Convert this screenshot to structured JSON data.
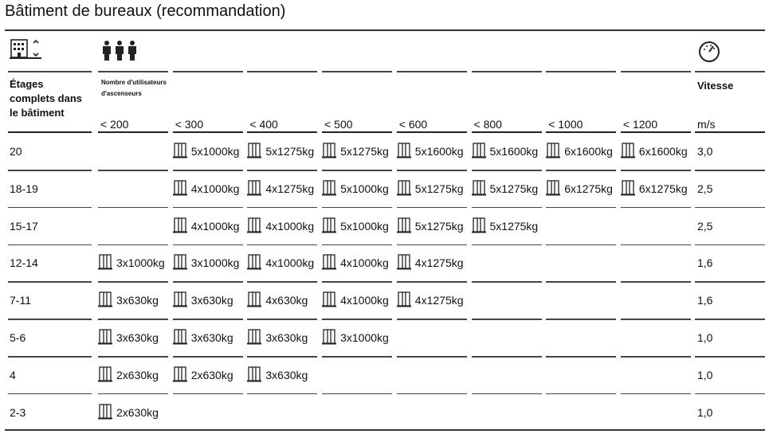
{
  "header": {
    "title": "Bâtiment de bureaux (recommandation)"
  },
  "table": {
    "floors_header": "Étages complets dans le bâtiment",
    "users_header": "Nombre d'utilisateurs d'ascenseurs",
    "columns": [
      "< 200",
      "< 300",
      "< 400",
      "< 500",
      "< 600",
      "< 800",
      "< 1000",
      "< 1200"
    ],
    "speed_header": "Vitesse",
    "speed_unit": "m/s",
    "rows": [
      {
        "floors": "20",
        "cells": [
          null,
          "5x1000kg",
          "5x1275kg",
          "5x1275kg",
          "5x1600kg",
          "5x1600kg",
          "6x1600kg",
          "6x1600kg"
        ],
        "speed": "3,0"
      },
      {
        "floors": "18-19",
        "cells": [
          null,
          "4x1000kg",
          "4x1275kg",
          "5x1000kg",
          "5x1275kg",
          "5x1275kg",
          "6x1275kg",
          "6x1275kg"
        ],
        "speed": "2,5"
      },
      {
        "floors": "15-17",
        "cells": [
          null,
          "4x1000kg",
          "4x1000kg",
          "5x1000kg",
          "5x1275kg",
          "5x1275kg",
          null,
          null
        ],
        "speed": "2,5"
      },
      {
        "floors": "12-14",
        "cells": [
          "3x1000kg",
          "3x1000kg",
          "4x1000kg",
          "4x1000kg",
          "4x1275kg",
          null,
          null,
          null
        ],
        "speed": "1,6"
      },
      {
        "floors": "7-11",
        "cells": [
          "3x630kg",
          "3x630kg",
          "4x630kg",
          "4x1000kg",
          "4x1275kg",
          null,
          null,
          null
        ],
        "speed": "1,6"
      },
      {
        "floors": "5-6",
        "cells": [
          "3x630kg",
          "3x630kg",
          "3x630kg",
          "3x1000kg",
          null,
          null,
          null,
          null
        ],
        "speed": "1,0"
      },
      {
        "floors": "4",
        "cells": [
          "2x630kg",
          "2x630kg",
          "3x630kg",
          null,
          null,
          null,
          null,
          null
        ],
        "speed": "1,0"
      },
      {
        "floors": "2-3",
        "cells": [
          "2x630kg",
          null,
          null,
          null,
          null,
          null,
          null,
          null
        ],
        "speed": "1,0"
      }
    ]
  }
}
